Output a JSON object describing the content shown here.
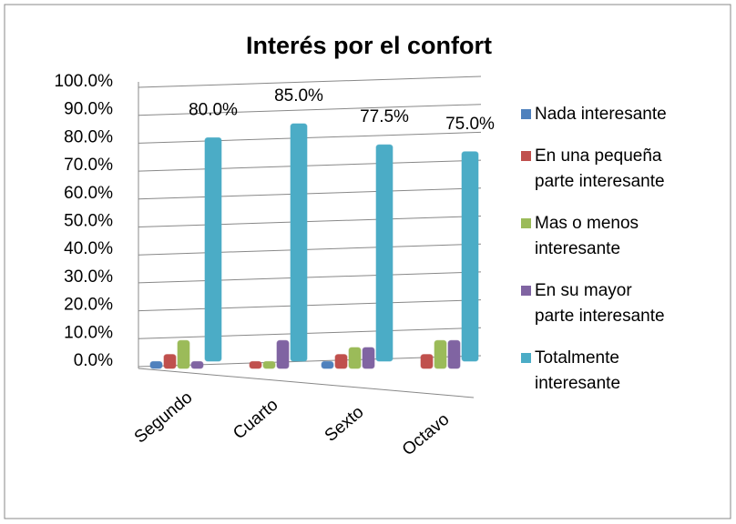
{
  "chart_data": {
    "type": "bar",
    "title": "Interés por el confort",
    "categories": [
      "Segundo",
      "Cuarto",
      "Sexto",
      "Octavo"
    ],
    "series": [
      {
        "name": "Nada interesante",
        "color": "#4f81bd",
        "values": [
          2.5,
          0,
          2.5,
          0
        ]
      },
      {
        "name": "En una pequeña parte interesante",
        "color": "#c0504d",
        "values": [
          5,
          2.5,
          5,
          5
        ]
      },
      {
        "name": "Mas o menos interesante",
        "color": "#9bbb59",
        "values": [
          10,
          2.5,
          7.5,
          10
        ]
      },
      {
        "name": "En su mayor parte interesante",
        "color": "#8064a2",
        "values": [
          2.5,
          10,
          7.5,
          10
        ]
      },
      {
        "name": "Totalmente interesante",
        "color": "#4bacc6",
        "values": [
          80,
          85,
          77.5,
          75
        ],
        "value_labels": [
          "80.0%",
          "85.0%",
          "77.5%",
          "75.0%"
        ]
      }
    ],
    "ylim": [
      0,
      100
    ],
    "yticks": [
      {
        "value": 0,
        "label": "0.0%"
      },
      {
        "value": 10,
        "label": "10.0%"
      },
      {
        "value": 20,
        "label": "20.0%"
      },
      {
        "value": 30,
        "label": "30.0%"
      },
      {
        "value": 40,
        "label": "40.0%"
      },
      {
        "value": 50,
        "label": "50.0%"
      },
      {
        "value": 60,
        "label": "60.0%"
      },
      {
        "value": 70,
        "label": "70.0%"
      },
      {
        "value": 80,
        "label": "80.0%"
      },
      {
        "value": 90,
        "label": "90.0%"
      },
      {
        "value": 100,
        "label": "100.0%"
      }
    ],
    "grid": true,
    "legend": "right"
  }
}
